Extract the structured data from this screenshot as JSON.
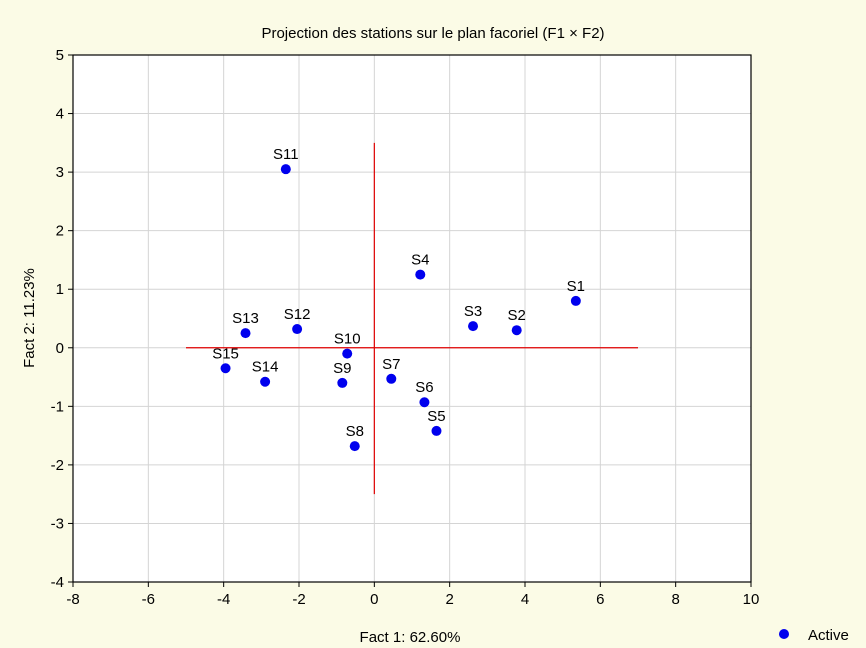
{
  "chart_data": {
    "type": "scatter",
    "title": "Projection des stations sur le plan facoriel (F1 × F2)",
    "xlabel": "Fact 1: 62.60%",
    "ylabel": "Fact 2: 11.23%",
    "xlim": [
      -8,
      10
    ],
    "ylim": [
      -4,
      5
    ],
    "xticks": [
      -8,
      -6,
      -4,
      -2,
      0,
      2,
      4,
      6,
      8,
      10
    ],
    "yticks": [
      -4,
      -3,
      -2,
      -1,
      0,
      1,
      2,
      3,
      4,
      5
    ],
    "grid": true,
    "legend": {
      "position": "bottom-right",
      "entries": [
        "Active"
      ]
    },
    "series": [
      {
        "name": "Active",
        "color": "#0000ee",
        "points": [
          {
            "label": "S1",
            "x": 5.35,
            "y": 0.8
          },
          {
            "label": "S2",
            "x": 3.78,
            "y": 0.3
          },
          {
            "label": "S3",
            "x": 2.62,
            "y": 0.37
          },
          {
            "label": "S4",
            "x": 1.22,
            "y": 1.25
          },
          {
            "label": "S5",
            "x": 1.65,
            "y": -1.42
          },
          {
            "label": "S6",
            "x": 1.33,
            "y": -0.93
          },
          {
            "label": "S7",
            "x": 0.45,
            "y": -0.53
          },
          {
            "label": "S8",
            "x": -0.52,
            "y": -1.68
          },
          {
            "label": "S9",
            "x": -0.85,
            "y": -0.6
          },
          {
            "label": "S10",
            "x": -0.72,
            "y": -0.1
          },
          {
            "label": "S11",
            "x": -2.35,
            "y": 3.05
          },
          {
            "label": "S12",
            "x": -2.05,
            "y": 0.32
          },
          {
            "label": "S13",
            "x": -3.42,
            "y": 0.25
          },
          {
            "label": "S14",
            "x": -2.9,
            "y": -0.58
          },
          {
            "label": "S15",
            "x": -3.95,
            "y": -0.35
          }
        ]
      }
    ],
    "reference_lines": {
      "color": "#e00000",
      "horizontal": {
        "y": 0,
        "x_from": -5,
        "x_to": 7
      },
      "vertical": {
        "x": 0,
        "y_from": -2.5,
        "y_to": 3.5
      }
    }
  }
}
